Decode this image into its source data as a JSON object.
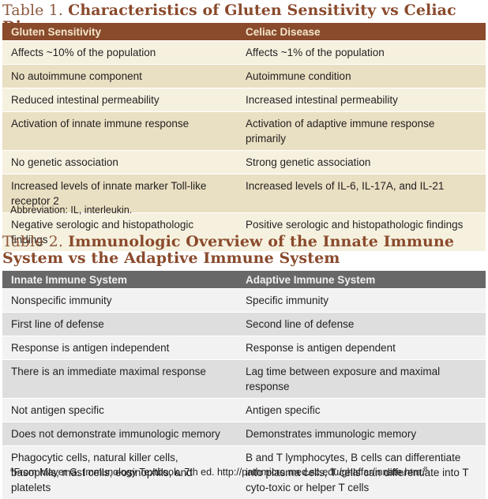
{
  "table1": {
    "label": "Table 1.",
    "title": "Characteristics of Gluten Sensitivity vs Celiac Disease",
    "headers": [
      "Gluten Sensitivity",
      "Celiac Disease"
    ],
    "rows": [
      [
        "Affects ~10% of the population",
        "Affects ~1% of the population"
      ],
      [
        "No autoimmune component",
        "Autoimmune condition"
      ],
      [
        "Reduced intestinal permeability",
        "Increased intestinal permeability"
      ],
      [
        "Activation of innate immune response",
        "Activation of adaptive immune response primarily"
      ],
      [
        "No genetic association",
        "Strong genetic association"
      ],
      [
        "Increased levels of innate marker Toll-like receptor 2",
        "Increased levels of IL-6, IL-17A, and IL-21"
      ],
      [
        "Negative serologic and histopathologic findings",
        "Positive serologic and histopathologic findings"
      ]
    ],
    "footnote": "Abbreviation: IL, interleukin."
  },
  "table2": {
    "label": "Table 2.",
    "title": "Immunologic Overview of the Innate Immune System vs the Adaptive Immune System",
    "headers": [
      "Innate Immune System",
      "Adaptive Immune System"
    ],
    "rows": [
      [
        "Nonspecific immunity",
        "Specific immunity"
      ],
      [
        "First line of defense",
        "Second line of defense"
      ],
      [
        "Response is antigen independent",
        "Response is antigen dependent"
      ],
      [
        "There is an immediate maximal response",
        "Lag time between exposure and maximal response"
      ],
      [
        "Not antigen specific",
        "Antigen specific"
      ],
      [
        "Does not demonstrate immunologic memory",
        "Demonstrates immunologic memory"
      ],
      [
        "Phagocytic cells, natural killer cells, basophils, mast cells, eosinophils, and platelets",
        "B and T lymphocytes, B cells can differentiate into plasma cells, T cells can differentiate into T cyto-toxic or helper T cells"
      ]
    ],
    "footnote_marker": "a",
    "footnote_text": "From Mayer G. Immunology Textbook. 7th ed. http://pathmicro.med.sc.edu/ghaffar/innate.htm.",
    "footnote_ref": "8"
  }
}
